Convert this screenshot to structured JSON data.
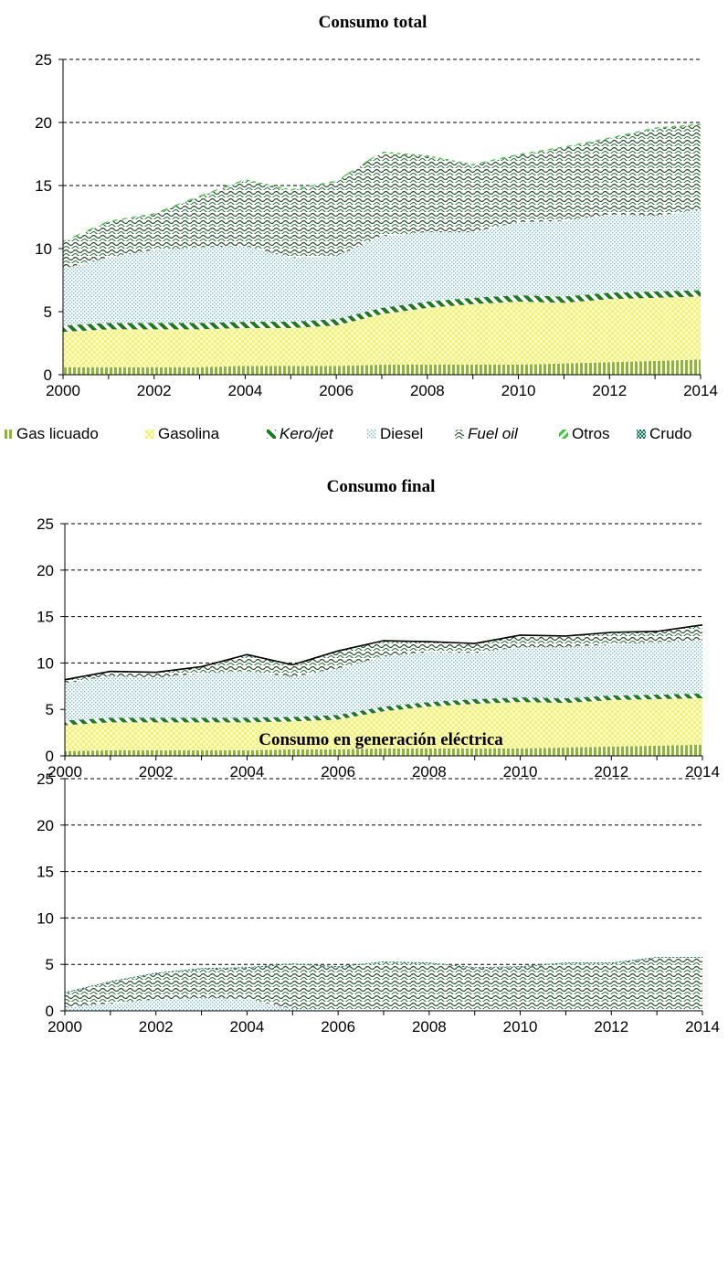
{
  "legend": {
    "items": [
      {
        "label": "Gas licuado",
        "fill": "url(#p-gas)",
        "italic": false
      },
      {
        "label": "Gasolina",
        "fill": "url(#p-gasolina)",
        "italic": false
      },
      {
        "label": "Kero/jet",
        "fill": "url(#p-kero)",
        "italic": true
      },
      {
        "label": "Diesel",
        "fill": "url(#p-diesel)",
        "italic": false
      },
      {
        "label": "Fuel oil",
        "fill": "url(#p-fuel)",
        "italic": true
      },
      {
        "label": "Otros",
        "fill": "url(#p-otros)",
        "italic": false
      },
      {
        "label": "Crudo",
        "fill": "url(#p-crudo)",
        "italic": false
      }
    ]
  },
  "colors": {
    "gas_licuado": "#8db82e",
    "gasolina": "#f6f590",
    "kero_jet": "#1e7a1e",
    "diesel": "#8fc7cf",
    "fuel_oil": "#2f4a2f",
    "otros": "#3cc63c",
    "crudo": "#1b6f5a"
  },
  "chart_data": [
    {
      "type": "area",
      "stacked": true,
      "title": "Consumo total",
      "x": [
        2000,
        2001,
        2002,
        2003,
        2004,
        2005,
        2006,
        2007,
        2008,
        2009,
        2010,
        2011,
        2012,
        2013,
        2014
      ],
      "xticks": [
        2000,
        2002,
        2004,
        2006,
        2008,
        2010,
        2012,
        2014
      ],
      "ylim": [
        0,
        25
      ],
      "yticks": [
        0,
        5,
        10,
        15,
        20,
        25
      ],
      "grid": true,
      "legend_position": "bottom",
      "series": [
        {
          "name": "Gas licuado",
          "values": [
            0.6,
            0.6,
            0.6,
            0.6,
            0.7,
            0.7,
            0.7,
            0.8,
            0.8,
            0.8,
            0.8,
            0.9,
            1.0,
            1.1,
            1.2
          ]
        },
        {
          "name": "Gasolina",
          "values": [
            2.8,
            3.0,
            3.0,
            3.0,
            3.0,
            3.0,
            3.2,
            4.0,
            4.5,
            4.8,
            5.0,
            4.8,
            5.0,
            5.0,
            5.0
          ]
        },
        {
          "name": "Kero/jet",
          "values": [
            0.5,
            0.5,
            0.5,
            0.5,
            0.5,
            0.5,
            0.5,
            0.5,
            0.5,
            0.5,
            0.5,
            0.5,
            0.5,
            0.5,
            0.5
          ]
        },
        {
          "name": "Diesel",
          "values": [
            4.5,
            5.2,
            5.8,
            6.0,
            6.0,
            5.1,
            5.0,
            5.7,
            5.5,
            5.2,
            5.8,
            6.0,
            6.2,
            6.0,
            6.4
          ]
        },
        {
          "name": "Fuel oil",
          "values": [
            2.1,
            2.8,
            2.8,
            4.0,
            5.2,
            5.3,
            5.9,
            6.6,
            6.0,
            5.3,
            5.3,
            5.8,
            6.0,
            6.9,
            6.7
          ]
        },
        {
          "name": "Otros",
          "values": [
            0.1,
            0.1,
            0.1,
            0.1,
            0.1,
            0.1,
            0.1,
            0.1,
            0.1,
            0.1,
            0.1,
            0.1,
            0.1,
            0.1,
            0.1
          ]
        },
        {
          "name": "Crudo",
          "values": [
            0,
            0,
            0,
            0,
            0,
            0,
            0,
            0,
            0,
            0,
            0,
            0,
            0,
            0,
            0
          ]
        }
      ]
    },
    {
      "type": "area",
      "stacked": true,
      "title": "Consumo final",
      "x": [
        2000,
        2001,
        2002,
        2003,
        2004,
        2005,
        2006,
        2007,
        2008,
        2009,
        2010,
        2011,
        2012,
        2013,
        2014
      ],
      "xticks": [
        2000,
        2002,
        2004,
        2006,
        2008,
        2010,
        2012,
        2014
      ],
      "ylim": [
        0,
        25
      ],
      "yticks": [
        0,
        5,
        10,
        15,
        20,
        25
      ],
      "grid": true,
      "total_line": [
        8.2,
        9.1,
        9.0,
        9.6,
        10.9,
        9.8,
        11.3,
        12.4,
        12.3,
        12.1,
        13.0,
        12.9,
        13.3,
        13.4,
        14.1
      ],
      "series": [
        {
          "name": "Gas licuado",
          "values": [
            0.5,
            0.6,
            0.6,
            0.6,
            0.6,
            0.7,
            0.7,
            0.8,
            0.8,
            0.8,
            0.8,
            0.9,
            1.0,
            1.1,
            1.2
          ]
        },
        {
          "name": "Gasolina",
          "values": [
            2.8,
            3.0,
            3.0,
            3.0,
            3.0,
            3.0,
            3.2,
            4.0,
            4.5,
            4.8,
            5.0,
            4.8,
            5.0,
            5.0,
            5.0
          ]
        },
        {
          "name": "Kero/jet",
          "values": [
            0.5,
            0.5,
            0.5,
            0.5,
            0.5,
            0.5,
            0.5,
            0.5,
            0.5,
            0.5,
            0.5,
            0.5,
            0.5,
            0.5,
            0.5
          ]
        },
        {
          "name": "Diesel",
          "values": [
            4.0,
            4.5,
            4.3,
            4.8,
            5.0,
            4.3,
            5.0,
            5.4,
            5.4,
            5.0,
            5.4,
            5.5,
            5.5,
            5.6,
            5.8
          ]
        },
        {
          "name": "Fuel oil",
          "values": [
            0.4,
            0.5,
            0.6,
            0.7,
            1.8,
            1.3,
            1.9,
            1.7,
            1.1,
            1.0,
            1.3,
            1.2,
            1.3,
            1.2,
            1.6
          ]
        },
        {
          "name": "Otros",
          "values": [
            0,
            0,
            0,
            0,
            0,
            0,
            0,
            0,
            0,
            0,
            0,
            0,
            0,
            0,
            0
          ]
        },
        {
          "name": "Crudo",
          "values": [
            0,
            0,
            0,
            0,
            0,
            0,
            0,
            0,
            0,
            0,
            0,
            0,
            0,
            0,
            0
          ]
        }
      ]
    },
    {
      "type": "area",
      "stacked": true,
      "title": "Consumo en generación eléctrica",
      "x": [
        2000,
        2001,
        2002,
        2003,
        2004,
        2005,
        2006,
        2007,
        2008,
        2009,
        2010,
        2011,
        2012,
        2013,
        2014
      ],
      "xticks": [
        2000,
        2002,
        2004,
        2006,
        2008,
        2010,
        2012,
        2014
      ],
      "ylim": [
        0,
        25
      ],
      "yticks": [
        0,
        5,
        10,
        15,
        20,
        25
      ],
      "grid": true,
      "series": [
        {
          "name": "Gas licuado",
          "values": [
            0,
            0,
            0,
            0,
            0,
            0,
            0,
            0,
            0,
            0,
            0,
            0,
            0,
            0,
            0
          ]
        },
        {
          "name": "Gasolina",
          "values": [
            0,
            0,
            0,
            0,
            0,
            0,
            0,
            0,
            0,
            0,
            0,
            0,
            0,
            0,
            0
          ]
        },
        {
          "name": "Kero/jet",
          "values": [
            0,
            0,
            0,
            0,
            0,
            0,
            0,
            0,
            0,
            0,
            0,
            0,
            0,
            0,
            0
          ]
        },
        {
          "name": "Diesel",
          "values": [
            0.4,
            0.8,
            1.2,
            1.4,
            1.3,
            0.2,
            0.1,
            0.1,
            0.1,
            0.1,
            0.1,
            0.1,
            0.1,
            0.1,
            0.1
          ]
        },
        {
          "name": "Fuel oil",
          "values": [
            1.5,
            2.3,
            2.8,
            3.1,
            3.3,
            4.8,
            4.6,
            5.1,
            5.0,
            4.5,
            4.6,
            5.0,
            5.0,
            5.6,
            5.6
          ]
        },
        {
          "name": "Otros",
          "values": [
            0,
            0,
            0,
            0,
            0,
            0,
            0,
            0,
            0,
            0,
            0,
            0,
            0,
            0,
            0
          ]
        },
        {
          "name": "Crudo",
          "values": [
            0.1,
            0.1,
            0.1,
            0.1,
            0.1,
            0.1,
            0.1,
            0.1,
            0.1,
            0.1,
            0.1,
            0.1,
            0.1,
            0.1,
            0.1
          ]
        }
      ]
    }
  ]
}
